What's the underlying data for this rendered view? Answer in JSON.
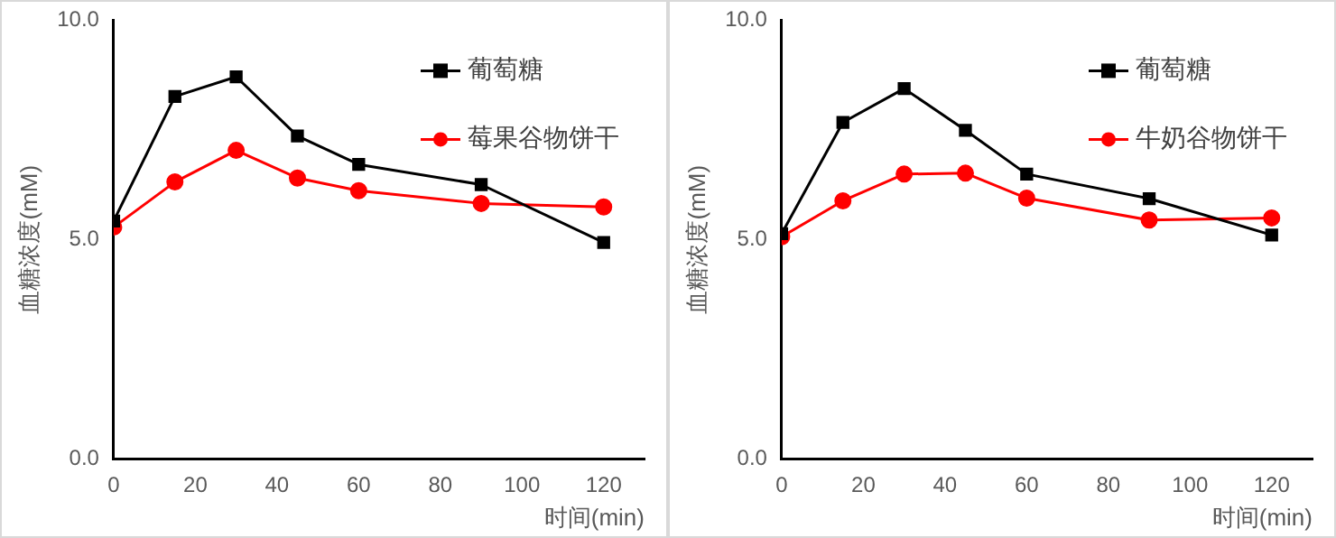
{
  "chart_data": [
    {
      "type": "line",
      "xlabel": "时间(min)",
      "ylabel": "血糖浓度(mM)",
      "x": [
        0,
        15,
        30,
        45,
        60,
        90,
        120
      ],
      "xlim": [
        0,
        130
      ],
      "xticks": [
        0,
        20,
        40,
        60,
        80,
        100,
        120
      ],
      "ylim": [
        0,
        10
      ],
      "yticks": [
        {
          "value": 0,
          "label": "0.0"
        },
        {
          "value": 5,
          "label": "5.0"
        },
        {
          "value": 10,
          "label": "10.0"
        }
      ],
      "grid": false,
      "legend": "top right",
      "line_style": "solid",
      "series": [
        {
          "name": "葡萄糖",
          "color": "#000000",
          "marker": "square",
          "values": [
            5.42,
            8.26,
            8.71,
            7.36,
            6.71,
            6.25,
            4.93
          ]
        },
        {
          "name": "莓果谷物饼干",
          "color": "#ff0000",
          "marker": "circle",
          "values": [
            5.28,
            6.31,
            7.03,
            6.4,
            6.11,
            5.82,
            5.74
          ]
        }
      ]
    },
    {
      "type": "line",
      "xlabel": "时间(min)",
      "ylabel": "血糖浓度(mM)",
      "x": [
        0,
        15,
        30,
        45,
        60,
        90,
        120
      ],
      "xlim": [
        0,
        130
      ],
      "xticks": [
        0,
        20,
        40,
        60,
        80,
        100,
        120
      ],
      "ylim": [
        0,
        10
      ],
      "yticks": [
        {
          "value": 0,
          "label": "0.0"
        },
        {
          "value": 5,
          "label": "5.0"
        },
        {
          "value": 10,
          "label": "10.0"
        }
      ],
      "grid": false,
      "legend": "top right",
      "line_style": "solid",
      "series": [
        {
          "name": "葡萄糖",
          "color": "#000000",
          "marker": "square",
          "values": [
            5.13,
            7.67,
            8.44,
            7.49,
            6.49,
            5.93,
            5.1
          ]
        },
        {
          "name": "牛奶谷物饼干",
          "color": "#ff0000",
          "marker": "circle",
          "values": [
            5.06,
            5.88,
            6.49,
            6.51,
            5.94,
            5.44,
            5.49
          ]
        }
      ]
    }
  ]
}
